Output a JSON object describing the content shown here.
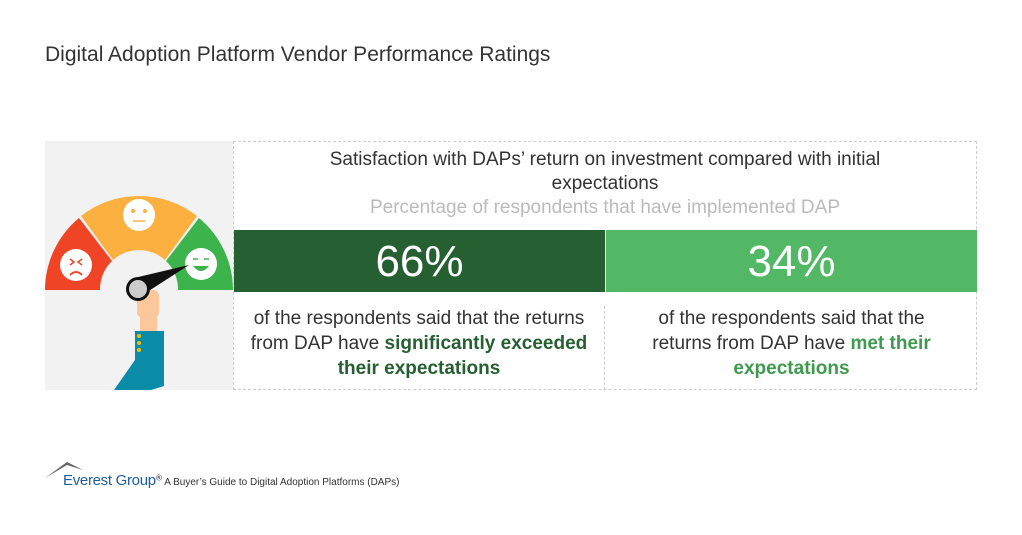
{
  "title": "Digital Adoption Platform Vendor Performance Ratings",
  "panel": {
    "heading": "Satisfaction with DAPs’ return on investment compared with initial expectations",
    "subheading": "Percentage of respondents that have implemented DAP",
    "stats": [
      {
        "value": "66%",
        "text": "of the respondents said that the returns from DAP have ",
        "highlight": "significantly exceeded their expectations",
        "color": "#265f32"
      },
      {
        "value": "34%",
        "text": "of the respondents said that the returns from DAP have ",
        "highlight": "met their expectations",
        "color": "#52b865"
      }
    ]
  },
  "footer": {
    "logo": "Everest Group",
    "reg": "®",
    "text": "A Buyer’s Guide to Digital Adoption Platforms (DAPs)"
  }
}
